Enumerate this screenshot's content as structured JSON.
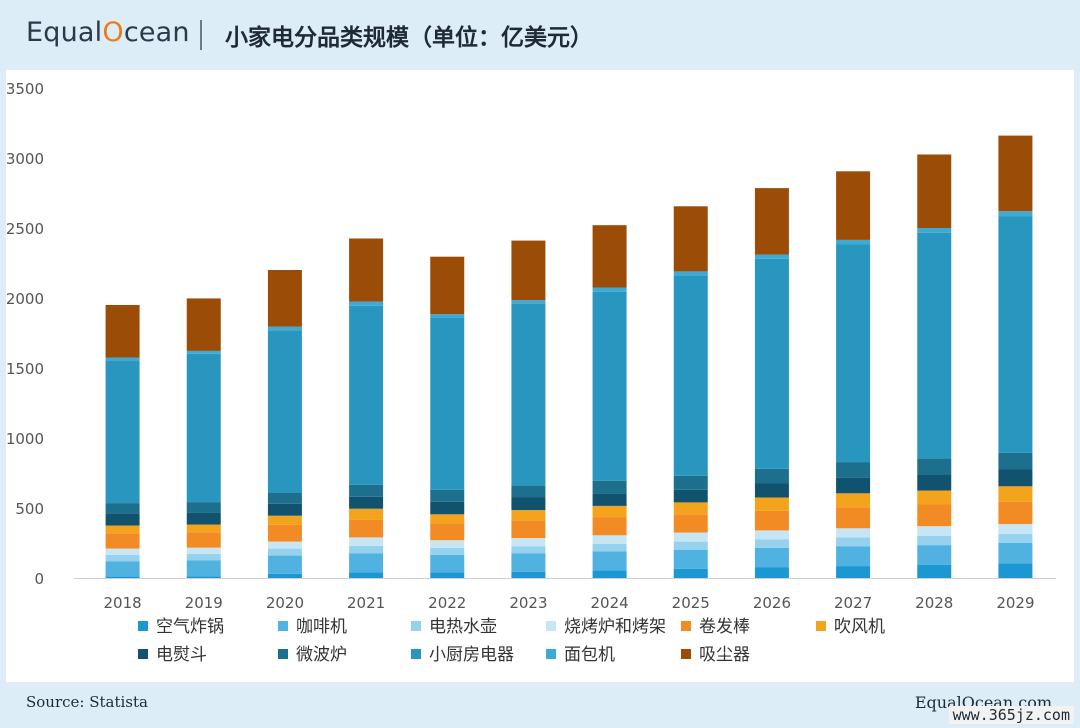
{
  "header": {
    "logo_text_pre": "Equal",
    "logo_text_o": "O",
    "logo_text_post": "cean",
    "title": "小家电分品类规模（单位：亿美元）"
  },
  "footer": {
    "source": "Source: Statista",
    "brand": "EqualOcean.com",
    "watermark": "www.365jz.com"
  },
  "chart_data": {
    "type": "bar",
    "stacked": true,
    "ylim": [
      0,
      3500
    ],
    "yticks": [
      0,
      500,
      1000,
      1500,
      2000,
      2500,
      3000,
      3500
    ],
    "grid": false,
    "legend_position": "bottom",
    "categories": [
      "2018",
      "2019",
      "2020",
      "2021",
      "2022",
      "2023",
      "2024",
      "2025",
      "2026",
      "2027",
      "2028",
      "2029"
    ],
    "series": [
      {
        "name": "空气炸锅",
        "color": "#1b97d1",
        "values": [
          10,
          12,
          30,
          40,
          40,
          45,
          55,
          65,
          75,
          85,
          95,
          105
        ]
      },
      {
        "name": "咖啡机",
        "color": "#4fb2e0",
        "values": [
          110,
          115,
          130,
          135,
          125,
          130,
          135,
          135,
          140,
          140,
          140,
          145
        ]
      },
      {
        "name": "电热水壶",
        "color": "#96d2ee",
        "values": [
          45,
          45,
          50,
          55,
          50,
          50,
          55,
          60,
          60,
          65,
          65,
          65
        ]
      },
      {
        "name": "烧烤炉和烤架",
        "color": "#c7e6f5",
        "values": [
          45,
          45,
          50,
          60,
          55,
          60,
          60,
          65,
          65,
          65,
          70,
          70
        ]
      },
      {
        "name": "卷发棒",
        "color": "#f28b24",
        "values": [
          110,
          110,
          120,
          125,
          120,
          125,
          130,
          130,
          140,
          150,
          155,
          160
        ]
      },
      {
        "name": "吹风机",
        "color": "#f4a41c",
        "values": [
          55,
          55,
          65,
          80,
          65,
          75,
          80,
          85,
          95,
          100,
          100,
          110
        ]
      },
      {
        "name": "电熨斗",
        "color": "#11526e",
        "values": [
          85,
          85,
          85,
          85,
          90,
          90,
          90,
          90,
          100,
          110,
          115,
          120
        ]
      },
      {
        "name": "微波炉",
        "color": "#1d6f8e",
        "values": [
          75,
          75,
          80,
          85,
          85,
          85,
          90,
          100,
          105,
          110,
          115,
          120
        ]
      },
      {
        "name": "小厨房电器",
        "color": "#2996c0",
        "values": [
          1020,
          1060,
          1160,
          1280,
          1230,
          1300,
          1350,
          1430,
          1500,
          1560,
          1610,
          1690
        ]
      },
      {
        "name": "面包机",
        "color": "#3daad5",
        "values": [
          20,
          20,
          25,
          30,
          25,
          25,
          30,
          30,
          30,
          30,
          35,
          35
        ]
      },
      {
        "name": "吸尘器",
        "color": "#9b4d07",
        "values": [
          375,
          375,
          405,
          450,
          410,
          425,
          445,
          465,
          475,
          490,
          525,
          540
        ]
      }
    ]
  }
}
